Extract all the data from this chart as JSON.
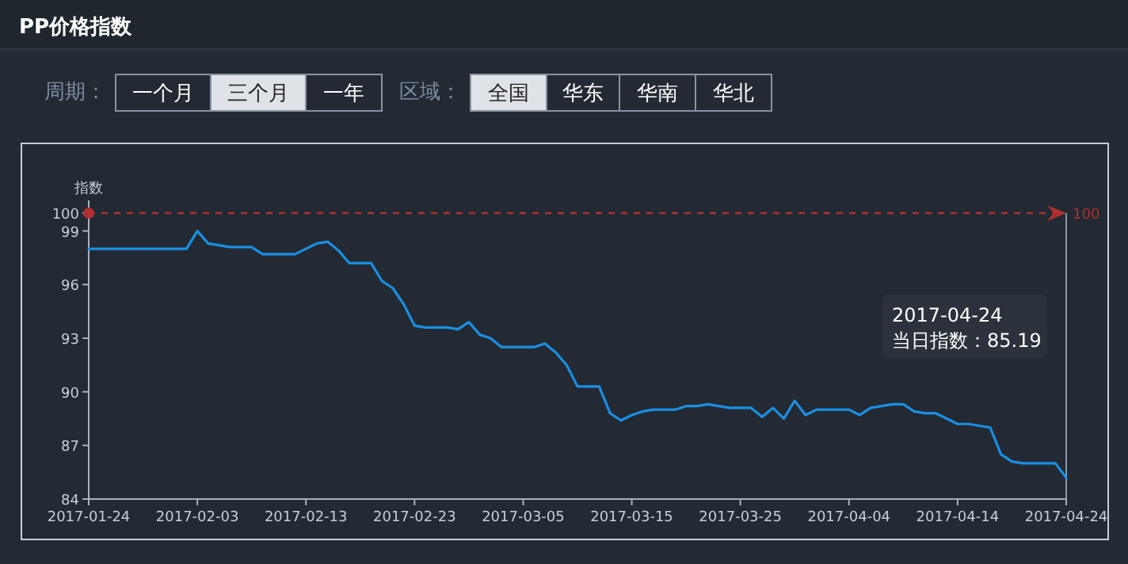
{
  "chart_data": {
    "type": "line",
    "title": "PP价格指数",
    "ylabel": "指数",
    "x": [
      "2017-01-24",
      "2017-01-25",
      "2017-01-26",
      "2017-01-27",
      "2017-01-28",
      "2017-01-29",
      "2017-01-30",
      "2017-01-31",
      "2017-02-01",
      "2017-02-02",
      "2017-02-03",
      "2017-02-04",
      "2017-02-05",
      "2017-02-06",
      "2017-02-07",
      "2017-02-08",
      "2017-02-09",
      "2017-02-10",
      "2017-02-11",
      "2017-02-12",
      "2017-02-13",
      "2017-02-14",
      "2017-02-15",
      "2017-02-16",
      "2017-02-17",
      "2017-02-18",
      "2017-02-19",
      "2017-02-20",
      "2017-02-21",
      "2017-02-22",
      "2017-02-23",
      "2017-02-24",
      "2017-02-25",
      "2017-02-26",
      "2017-02-27",
      "2017-02-28",
      "2017-03-01",
      "2017-03-02",
      "2017-03-03",
      "2017-03-04",
      "2017-03-05",
      "2017-03-06",
      "2017-03-07",
      "2017-03-08",
      "2017-03-09",
      "2017-03-10",
      "2017-03-11",
      "2017-03-12",
      "2017-03-13",
      "2017-03-14",
      "2017-03-15",
      "2017-03-16",
      "2017-03-17",
      "2017-03-18",
      "2017-03-19",
      "2017-03-20",
      "2017-03-21",
      "2017-03-22",
      "2017-03-23",
      "2017-03-24",
      "2017-03-25",
      "2017-03-26",
      "2017-03-27",
      "2017-03-28",
      "2017-03-29",
      "2017-03-30",
      "2017-03-31",
      "2017-04-01",
      "2017-04-02",
      "2017-04-03",
      "2017-04-04",
      "2017-04-05",
      "2017-04-06",
      "2017-04-07",
      "2017-04-08",
      "2017-04-09",
      "2017-04-10",
      "2017-04-11",
      "2017-04-12",
      "2017-04-13",
      "2017-04-14",
      "2017-04-15",
      "2017-04-16",
      "2017-04-17",
      "2017-04-18",
      "2017-04-19",
      "2017-04-20",
      "2017-04-21",
      "2017-04-22",
      "2017-04-23",
      "2017-04-24"
    ],
    "series": [
      {
        "color": "#1a8fe3",
        "values": [
          98.0,
          98.0,
          98.0,
          98.0,
          98.0,
          98.0,
          98.0,
          98.0,
          98.0,
          98.0,
          99.0,
          98.3,
          98.2,
          98.1,
          98.1,
          98.1,
          97.7,
          97.7,
          97.7,
          97.7,
          98.0,
          98.3,
          98.4,
          97.9,
          97.2,
          97.2,
          97.2,
          96.2,
          95.8,
          94.9,
          93.7,
          93.6,
          93.6,
          93.6,
          93.5,
          93.9,
          93.2,
          93.0,
          92.5,
          92.5,
          92.5,
          92.5,
          92.7,
          92.2,
          91.5,
          90.3,
          90.3,
          90.3,
          88.8,
          88.4,
          88.7,
          88.9,
          89.0,
          89.0,
          89.0,
          89.2,
          89.2,
          89.3,
          89.2,
          89.1,
          89.1,
          89.1,
          88.6,
          89.1,
          88.5,
          89.5,
          88.7,
          89.0,
          89.0,
          89.0,
          89.0,
          88.7,
          89.1,
          89.2,
          89.3,
          89.3,
          88.9,
          88.8,
          88.8,
          88.5,
          88.2,
          88.2,
          88.1,
          88.0,
          86.5,
          86.1,
          86.0,
          86.0,
          86.0,
          86.0,
          85.19
        ]
      }
    ],
    "xlim": [
      "2017-01-24",
      "2017-04-24"
    ],
    "xticks": [
      "2017-01-24",
      "2017-02-03",
      "2017-02-13",
      "2017-02-23",
      "2017-03-05",
      "2017-03-15",
      "2017-03-25",
      "2017-04-04",
      "2017-04-14",
      "2017-04-24"
    ],
    "ylim": [
      84,
      100
    ],
    "yticks": [
      84,
      87,
      90,
      93,
      96,
      99,
      100
    ],
    "grid": false,
    "ref_lines": [
      {
        "axis": "y",
        "value": 100,
        "label": "100",
        "color": "#b03030",
        "line_style": "dashed"
      },
      {
        "axis": "x",
        "value": "2017-04-24",
        "color": "#8a9bb0",
        "line_style": "solid"
      }
    ],
    "annotations": [
      "周期：",
      "一个月",
      "三个月",
      "一年",
      "区域：",
      "全国",
      "华东",
      "华南",
      "华北",
      "2017-04-24\n当日指数：85.19"
    ]
  }
}
